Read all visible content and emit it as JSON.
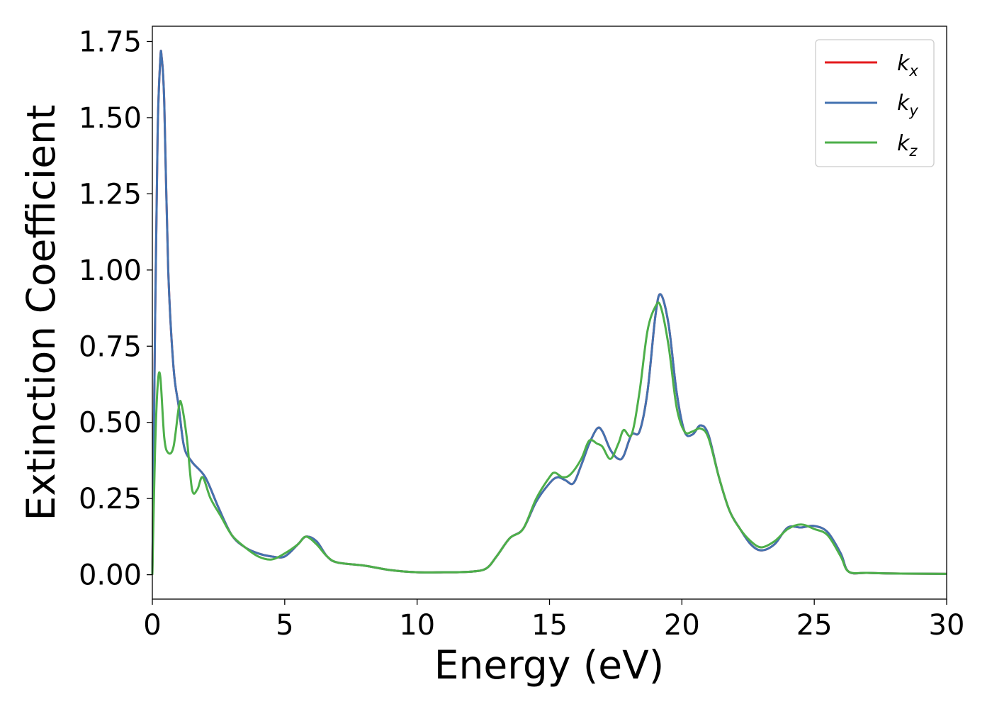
{
  "chart_data": {
    "type": "line",
    "xlabel": "Energy (eV)",
    "ylabel": "Extinction Coefficient",
    "xlim": [
      0,
      30
    ],
    "ylim": [
      -0.08,
      1.8
    ],
    "xticks": [
      "0",
      "5",
      "10",
      "15",
      "20",
      "25",
      "30"
    ],
    "yticks": [
      "0.00",
      "0.25",
      "0.50",
      "0.75",
      "1.00",
      "1.25",
      "1.50",
      "1.75"
    ],
    "grid": false,
    "legend_position": "top-right",
    "series": [
      {
        "name": "k_x",
        "label_main": "k",
        "label_sub": "x",
        "color": "#e41a1c",
        "x": [
          0,
          0.1,
          0.2,
          0.3,
          0.35,
          0.45,
          0.6,
          0.8,
          1.0,
          1.2,
          1.5,
          2.0,
          2.5,
          3.0,
          3.5,
          4.0,
          4.5,
          5.0,
          5.5,
          5.8,
          6.2,
          6.6,
          7.0,
          8.0,
          9.0,
          10.0,
          11.0,
          12.0,
          12.6,
          13.0,
          13.5,
          14.0,
          14.5,
          15.0,
          15.3,
          15.6,
          15.9,
          16.2,
          16.5,
          16.8,
          17.0,
          17.3,
          17.6,
          17.8,
          18.1,
          18.4,
          18.7,
          19.0,
          19.2,
          19.5,
          19.8,
          20.1,
          20.4,
          20.7,
          21.0,
          21.4,
          21.8,
          22.2,
          22.6,
          23.0,
          23.5,
          24.0,
          24.5,
          25.0,
          25.5,
          26.0,
          26.3,
          27.0,
          28.0,
          30.0
        ],
        "y": [
          0.0,
          0.8,
          1.45,
          1.69,
          1.7,
          1.55,
          1.0,
          0.68,
          0.55,
          0.42,
          0.37,
          0.32,
          0.22,
          0.13,
          0.09,
          0.07,
          0.06,
          0.06,
          0.1,
          0.125,
          0.11,
          0.06,
          0.04,
          0.03,
          0.015,
          0.008,
          0.008,
          0.01,
          0.02,
          0.06,
          0.12,
          0.15,
          0.24,
          0.3,
          0.32,
          0.31,
          0.3,
          0.36,
          0.43,
          0.48,
          0.47,
          0.41,
          0.38,
          0.39,
          0.46,
          0.47,
          0.6,
          0.85,
          0.92,
          0.82,
          0.6,
          0.47,
          0.46,
          0.49,
          0.46,
          0.32,
          0.21,
          0.15,
          0.1,
          0.08,
          0.1,
          0.155,
          0.155,
          0.16,
          0.14,
          0.07,
          0.01,
          0.006,
          0.004,
          0.003
        ]
      },
      {
        "name": "k_y",
        "label_main": "k",
        "label_sub": "y",
        "color": "#4372b0",
        "x": [
          0,
          0.1,
          0.2,
          0.3,
          0.35,
          0.45,
          0.6,
          0.8,
          1.0,
          1.2,
          1.5,
          2.0,
          2.5,
          3.0,
          3.5,
          4.0,
          4.5,
          5.0,
          5.5,
          5.8,
          6.2,
          6.6,
          7.0,
          8.0,
          9.0,
          10.0,
          11.0,
          12.0,
          12.6,
          13.0,
          13.5,
          14.0,
          14.5,
          15.0,
          15.3,
          15.6,
          15.9,
          16.2,
          16.5,
          16.8,
          17.0,
          17.3,
          17.6,
          17.8,
          18.1,
          18.4,
          18.7,
          19.0,
          19.2,
          19.5,
          19.8,
          20.1,
          20.4,
          20.7,
          21.0,
          21.4,
          21.8,
          22.2,
          22.6,
          23.0,
          23.5,
          24.0,
          24.5,
          25.0,
          25.5,
          26.0,
          26.3,
          27.0,
          28.0,
          30.0
        ],
        "y": [
          0.0,
          0.8,
          1.45,
          1.69,
          1.7,
          1.55,
          1.0,
          0.68,
          0.55,
          0.42,
          0.37,
          0.32,
          0.22,
          0.13,
          0.09,
          0.07,
          0.06,
          0.06,
          0.1,
          0.125,
          0.11,
          0.06,
          0.04,
          0.03,
          0.015,
          0.008,
          0.008,
          0.01,
          0.02,
          0.06,
          0.12,
          0.15,
          0.24,
          0.3,
          0.32,
          0.31,
          0.3,
          0.36,
          0.43,
          0.48,
          0.47,
          0.41,
          0.38,
          0.39,
          0.46,
          0.47,
          0.6,
          0.85,
          0.92,
          0.82,
          0.6,
          0.47,
          0.46,
          0.49,
          0.46,
          0.32,
          0.21,
          0.15,
          0.1,
          0.08,
          0.1,
          0.155,
          0.155,
          0.16,
          0.14,
          0.07,
          0.01,
          0.006,
          0.004,
          0.003
        ]
      },
      {
        "name": "k_z",
        "label_main": "k",
        "label_sub": "z",
        "color": "#4daf4a",
        "x": [
          0,
          0.1,
          0.2,
          0.3,
          0.45,
          0.6,
          0.8,
          1.0,
          1.1,
          1.3,
          1.5,
          1.7,
          1.9,
          2.2,
          2.6,
          3.0,
          3.5,
          4.0,
          4.5,
          5.0,
          5.5,
          5.8,
          6.2,
          6.6,
          7.0,
          8.0,
          9.0,
          10.0,
          11.0,
          12.0,
          12.6,
          13.0,
          13.5,
          14.0,
          14.5,
          15.0,
          15.2,
          15.5,
          15.8,
          16.2,
          16.5,
          16.8,
          17.0,
          17.3,
          17.6,
          17.8,
          18.1,
          18.4,
          18.7,
          19.0,
          19.2,
          19.5,
          19.8,
          20.1,
          20.4,
          20.7,
          21.0,
          21.4,
          21.8,
          22.2,
          22.6,
          23.0,
          23.5,
          24.0,
          24.5,
          25.0,
          25.5,
          26.0,
          26.3,
          27.0,
          28.0,
          30.0
        ],
        "y": [
          0.0,
          0.4,
          0.62,
          0.65,
          0.45,
          0.4,
          0.42,
          0.55,
          0.56,
          0.45,
          0.28,
          0.28,
          0.32,
          0.25,
          0.19,
          0.13,
          0.09,
          0.06,
          0.05,
          0.07,
          0.1,
          0.125,
          0.1,
          0.06,
          0.04,
          0.03,
          0.015,
          0.008,
          0.008,
          0.01,
          0.02,
          0.06,
          0.12,
          0.15,
          0.25,
          0.32,
          0.335,
          0.32,
          0.33,
          0.38,
          0.44,
          0.43,
          0.42,
          0.38,
          0.43,
          0.475,
          0.46,
          0.6,
          0.8,
          0.88,
          0.88,
          0.75,
          0.55,
          0.47,
          0.47,
          0.48,
          0.45,
          0.32,
          0.21,
          0.15,
          0.11,
          0.09,
          0.11,
          0.15,
          0.165,
          0.15,
          0.13,
          0.06,
          0.01,
          0.006,
          0.004,
          0.003
        ]
      }
    ]
  }
}
